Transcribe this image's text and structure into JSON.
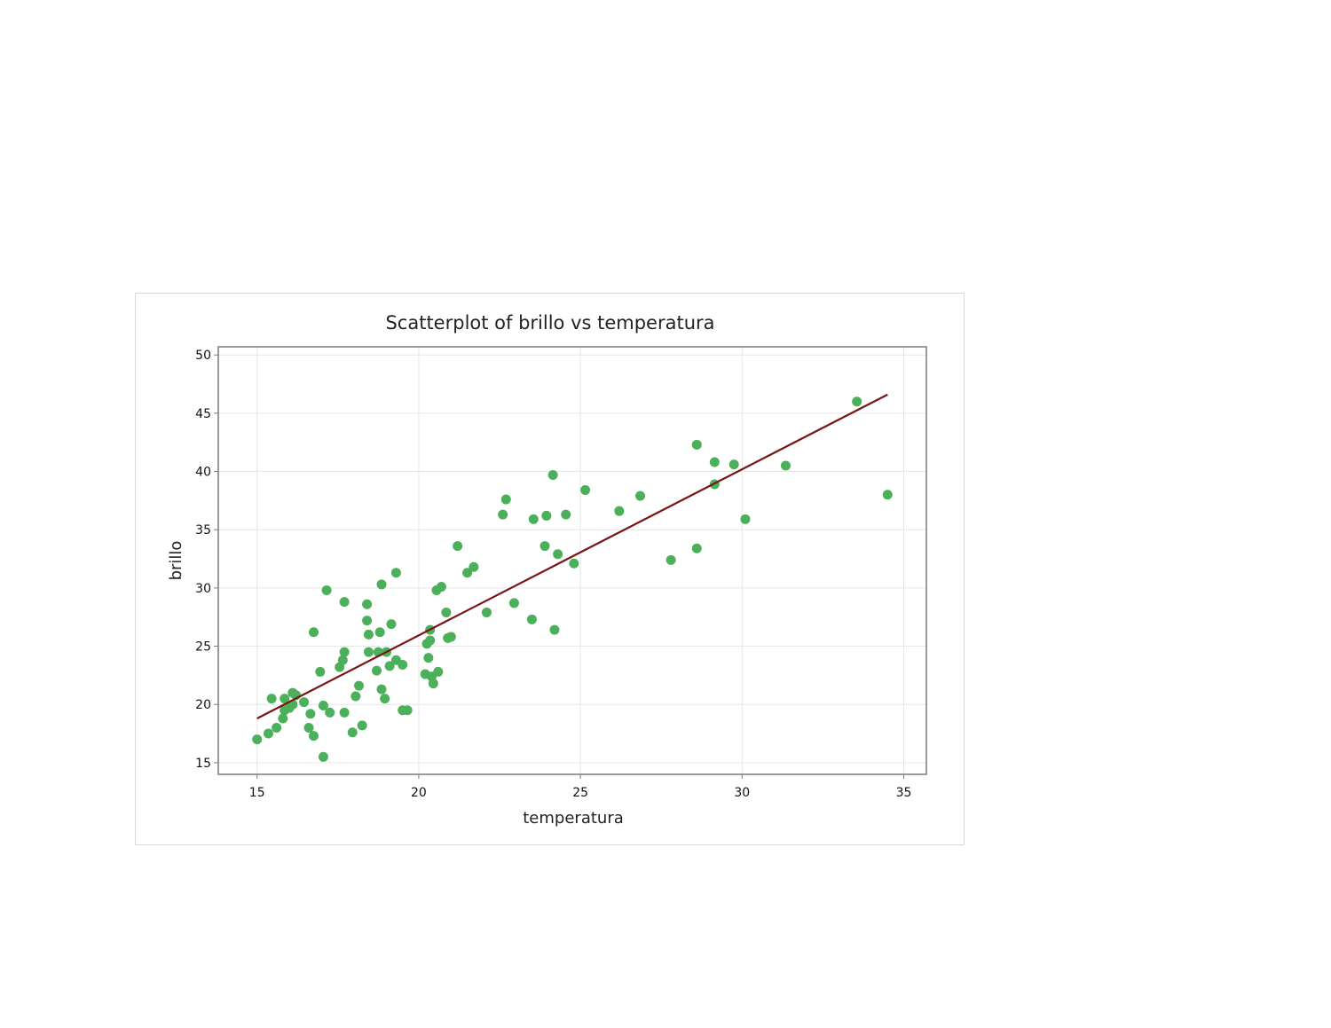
{
  "chart_data": {
    "type": "scatter",
    "title": "Scatterplot of brillo vs temperatura",
    "xlabel": "temperatura",
    "ylabel": "brillo",
    "xlim": [
      13.8,
      35.7
    ],
    "ylim": [
      14.0,
      50.7
    ],
    "xticks": [
      15,
      20,
      25,
      30,
      35
    ],
    "yticks": [
      15,
      20,
      25,
      30,
      35,
      40,
      45,
      50
    ],
    "grid": true,
    "colors": {
      "points": "#4caf5a",
      "fit_line": "#7a1414",
      "grid": "#e6e6e6",
      "frame": "#7a7a7a"
    },
    "series": [
      {
        "points": [
          [
            15.0,
            17.0
          ],
          [
            15.35,
            17.5
          ],
          [
            15.45,
            20.5
          ],
          [
            15.6,
            18.0
          ],
          [
            15.8,
            18.8
          ],
          [
            15.85,
            19.5
          ],
          [
            15.85,
            20.5
          ],
          [
            16.0,
            19.7
          ],
          [
            16.1,
            21.0
          ],
          [
            16.1,
            20.0
          ],
          [
            16.2,
            20.8
          ],
          [
            16.45,
            20.2
          ],
          [
            16.6,
            18.0
          ],
          [
            16.65,
            19.2
          ],
          [
            16.75,
            17.3
          ],
          [
            16.75,
            26.2
          ],
          [
            16.95,
            22.8
          ],
          [
            17.05,
            15.5
          ],
          [
            17.05,
            19.9
          ],
          [
            17.15,
            29.8
          ],
          [
            17.25,
            19.3
          ],
          [
            17.55,
            23.2
          ],
          [
            17.65,
            23.8
          ],
          [
            17.7,
            24.5
          ],
          [
            17.7,
            28.8
          ],
          [
            17.7,
            19.3
          ],
          [
            17.95,
            17.6
          ],
          [
            18.05,
            20.7
          ],
          [
            18.15,
            21.6
          ],
          [
            18.25,
            18.2
          ],
          [
            18.4,
            28.6
          ],
          [
            18.4,
            27.2
          ],
          [
            18.45,
            26.0
          ],
          [
            18.45,
            24.5
          ],
          [
            18.7,
            22.9
          ],
          [
            18.75,
            24.5
          ],
          [
            18.8,
            26.2
          ],
          [
            18.85,
            30.3
          ],
          [
            18.85,
            21.3
          ],
          [
            18.95,
            20.5
          ],
          [
            19.0,
            24.5
          ],
          [
            19.1,
            23.3
          ],
          [
            19.15,
            26.9
          ],
          [
            19.3,
            31.3
          ],
          [
            19.3,
            23.8
          ],
          [
            19.5,
            23.4
          ],
          [
            19.5,
            19.5
          ],
          [
            19.65,
            19.5
          ],
          [
            20.2,
            22.6
          ],
          [
            20.25,
            25.2
          ],
          [
            20.3,
            24.0
          ],
          [
            20.35,
            26.4
          ],
          [
            20.35,
            25.5
          ],
          [
            20.4,
            22.4
          ],
          [
            20.45,
            21.8
          ],
          [
            20.55,
            29.8
          ],
          [
            20.6,
            22.8
          ],
          [
            20.7,
            30.1
          ],
          [
            20.85,
            27.9
          ],
          [
            20.9,
            25.7
          ],
          [
            21.0,
            25.8
          ],
          [
            21.2,
            33.6
          ],
          [
            21.5,
            31.3
          ],
          [
            21.7,
            31.8
          ],
          [
            22.1,
            27.9
          ],
          [
            22.6,
            36.3
          ],
          [
            22.7,
            37.6
          ],
          [
            22.95,
            28.7
          ],
          [
            23.5,
            27.3
          ],
          [
            23.55,
            35.9
          ],
          [
            23.9,
            33.6
          ],
          [
            23.95,
            36.2
          ],
          [
            24.15,
            39.7
          ],
          [
            24.2,
            26.4
          ],
          [
            24.3,
            32.9
          ],
          [
            24.55,
            36.3
          ],
          [
            24.8,
            32.1
          ],
          [
            25.15,
            38.4
          ],
          [
            26.2,
            36.6
          ],
          [
            26.85,
            37.9
          ],
          [
            27.8,
            32.4
          ],
          [
            28.6,
            42.3
          ],
          [
            28.6,
            33.4
          ],
          [
            29.15,
            40.8
          ],
          [
            29.15,
            38.9
          ],
          [
            29.75,
            40.6
          ],
          [
            30.1,
            35.9
          ],
          [
            31.35,
            40.5
          ],
          [
            33.55,
            46.0
          ],
          [
            34.5,
            38.0
          ]
        ]
      }
    ],
    "fit_line": {
      "x": [
        15.0,
        34.5
      ],
      "y": [
        18.8,
        46.6
      ]
    }
  }
}
